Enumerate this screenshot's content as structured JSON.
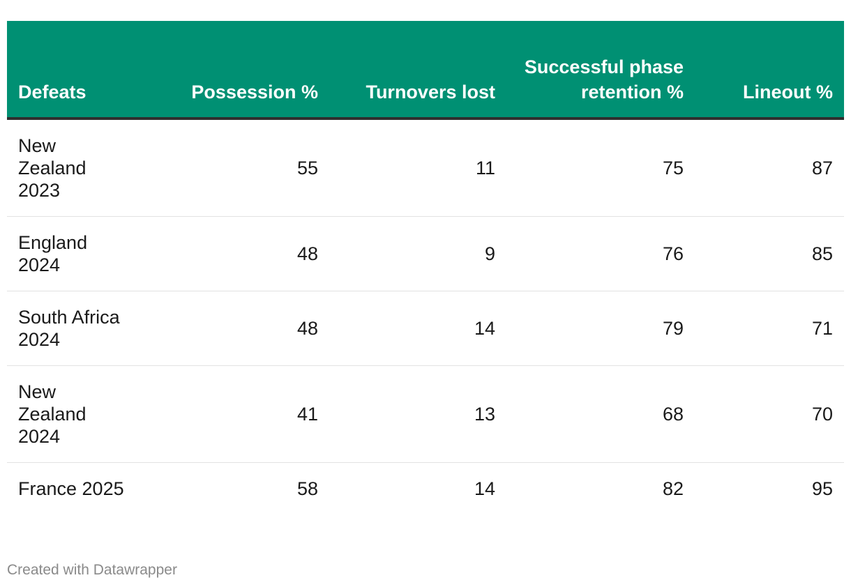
{
  "chart_data": {
    "type": "table",
    "columns": [
      "Defeats",
      "Possession %",
      "Turnovers lost",
      "Successful phase retention %",
      "Lineout %"
    ],
    "rows": [
      {
        "label": "New Zealand 2023",
        "values": [
          55,
          11,
          75,
          87
        ]
      },
      {
        "label": "England 2024",
        "values": [
          48,
          9,
          76,
          85
        ]
      },
      {
        "label": "South Africa 2024",
        "values": [
          48,
          14,
          79,
          71
        ]
      },
      {
        "label": "New Zealand 2024",
        "values": [
          41,
          13,
          68,
          70
        ]
      },
      {
        "label": "France 2025",
        "values": [
          58,
          14,
          82,
          95
        ]
      }
    ],
    "header_color": "#009073",
    "header_text_color": "#ffffff"
  },
  "footer": {
    "credit": "Created with Datawrapper"
  }
}
